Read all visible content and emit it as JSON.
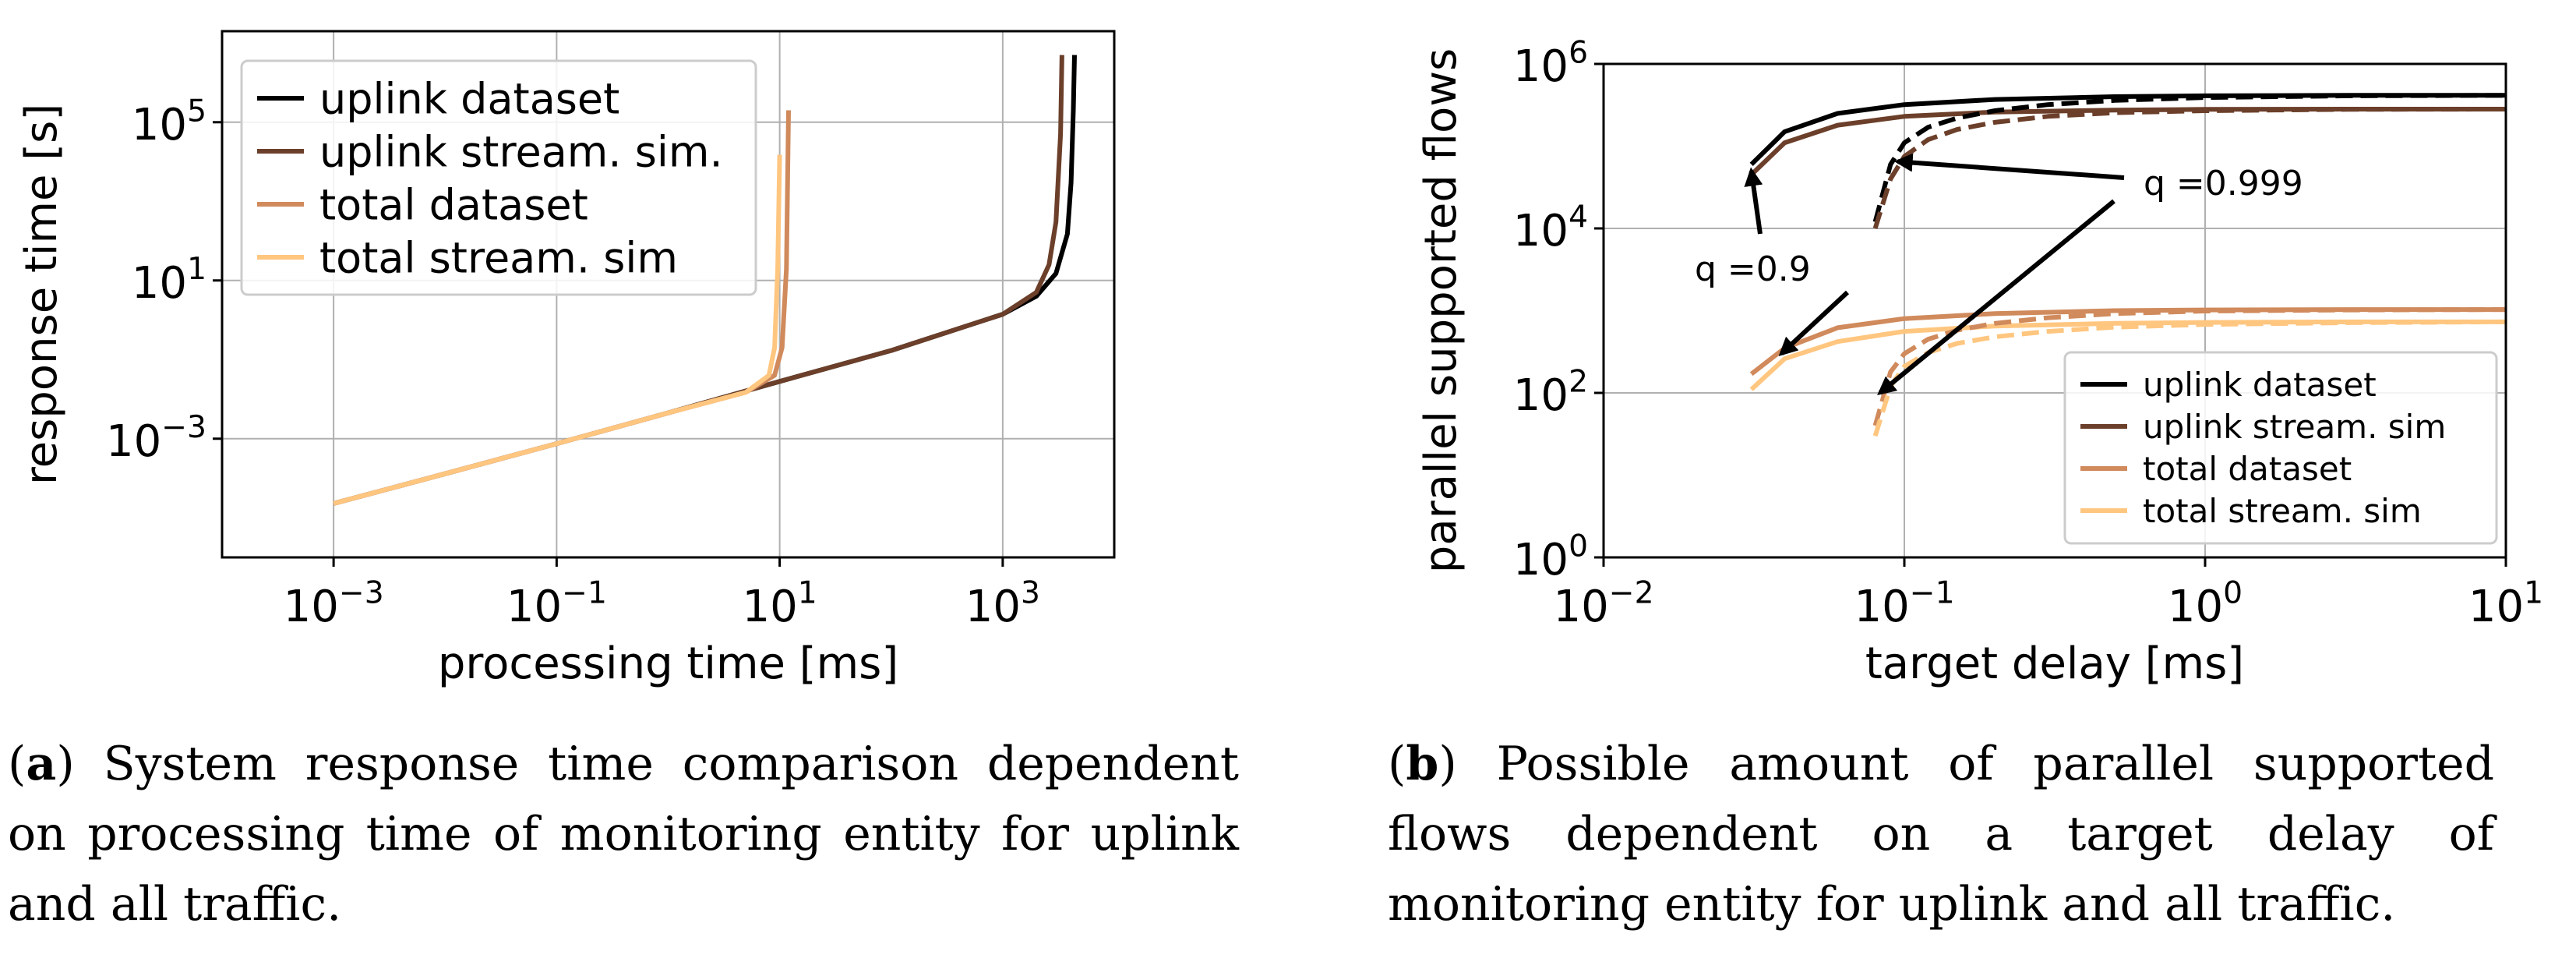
{
  "chart_data": [
    {
      "type": "line",
      "panel": "a",
      "xscale": "log",
      "yscale": "log",
      "xlabel": "processing time [ms]",
      "ylabel": "response time [s]",
      "xlim": [
        0.0001,
        10000
      ],
      "ylim": [
        1e-06,
        20000000
      ],
      "x_ticks": [
        {
          "value": 0.001,
          "base": "10",
          "exp": "−3"
        },
        {
          "value": 0.1,
          "base": "10",
          "exp": "−1"
        },
        {
          "value": 10,
          "base": "10",
          "exp": "1"
        },
        {
          "value": 1000,
          "base": "10",
          "exp": "3"
        }
      ],
      "y_ticks": [
        {
          "value": 0.001,
          "base": "10",
          "exp": "−3"
        },
        {
          "value": 10,
          "base": "10",
          "exp": "1"
        },
        {
          "value": 100000,
          "base": "10",
          "exp": "5"
        }
      ],
      "grid": true,
      "legend_position": "top-left",
      "series": [
        {
          "name": "uplink dataset",
          "color": "#000000",
          "x": [
            0.001,
            0.01,
            0.1,
            1,
            10,
            100,
            1000,
            2000,
            3000,
            3800,
            4100,
            4300,
            4400
          ],
          "y": [
            2.3e-05,
            0.00013,
            0.00075,
            0.0045,
            0.028,
            0.17,
            1.4,
            4.0,
            15,
            150,
            3000,
            200000,
            5000000
          ]
        },
        {
          "name": "uplink stream. sim.",
          "color": "#6b3f2a",
          "x": [
            0.001,
            0.01,
            0.1,
            1,
            10,
            100,
            1000,
            2000,
            2600,
            3000,
            3300,
            3400
          ],
          "y": [
            2.3e-05,
            0.00013,
            0.00075,
            0.0045,
            0.028,
            0.17,
            1.4,
            5.0,
            25,
            300,
            50000,
            5000000
          ]
        },
        {
          "name": "total dataset",
          "color": "#d08a5c",
          "x": [
            0.001,
            0.01,
            0.1,
            1,
            5,
            9,
            10.5,
            11.5,
            12
          ],
          "y": [
            2.3e-05,
            0.00013,
            0.00075,
            0.0045,
            0.015,
            0.04,
            0.2,
            20,
            200000
          ]
        },
        {
          "name": "total stream. sim",
          "color": "#ffc680",
          "x": [
            0.001,
            0.01,
            0.1,
            1,
            5,
            8,
            9,
            9.6,
            10
          ],
          "y": [
            2.3e-05,
            0.00013,
            0.00075,
            0.0045,
            0.015,
            0.04,
            0.2,
            20,
            15000
          ]
        }
      ],
      "caption": {
        "label": "a",
        "text": " System response time comparison dependent on processing time of monitoring entity for uplink and all traffic."
      }
    },
    {
      "type": "line",
      "panel": "b",
      "xscale": "log",
      "yscale": "log",
      "xlabel": "target delay [ms]",
      "ylabel": "parallel supported flows",
      "xlim": [
        0.01,
        10
      ],
      "ylim": [
        1,
        1000000
      ],
      "x_ticks": [
        {
          "value": 0.01,
          "base": "10",
          "exp": "−2"
        },
        {
          "value": 0.1,
          "base": "10",
          "exp": "−1"
        },
        {
          "value": 1,
          "base": "10",
          "exp": "0"
        },
        {
          "value": 10,
          "base": "10",
          "exp": "1"
        }
      ],
      "y_ticks": [
        {
          "value": 1,
          "base": "10",
          "exp": "0"
        },
        {
          "value": 100,
          "base": "10",
          "exp": "2"
        },
        {
          "value": 10000,
          "base": "10",
          "exp": "4"
        },
        {
          "value": 1000000,
          "base": "10",
          "exp": "6"
        }
      ],
      "grid": true,
      "legend_position": "bottom-right",
      "series": [
        {
          "name": "uplink dataset",
          "quantile": "0.9",
          "style": "solid",
          "color": "#000000",
          "x": [
            0.031,
            0.04,
            0.06,
            0.1,
            0.2,
            0.5,
            1,
            3,
            10
          ],
          "y": [
            60000,
            150000,
            250000,
            320000,
            370000,
            400000,
            410000,
            415000,
            415000
          ]
        },
        {
          "name": "uplink stream. sim",
          "quantile": "0.9",
          "style": "solid",
          "color": "#6b3f2a",
          "x": [
            0.031,
            0.04,
            0.06,
            0.1,
            0.2,
            0.5,
            1,
            3,
            10
          ],
          "y": [
            45000,
            110000,
            180000,
            230000,
            260000,
            275000,
            280000,
            282000,
            282000
          ]
        },
        {
          "name": "total dataset",
          "quantile": "0.9",
          "style": "solid",
          "color": "#d08a5c",
          "x": [
            0.031,
            0.04,
            0.06,
            0.1,
            0.2,
            0.5,
            1,
            3,
            10
          ],
          "y": [
            170,
            350,
            620,
            800,
            920,
            1000,
            1020,
            1030,
            1030
          ]
        },
        {
          "name": "total stream. sim",
          "quantile": "0.9",
          "style": "solid",
          "color": "#ffc680",
          "x": [
            0.031,
            0.04,
            0.06,
            0.1,
            0.2,
            0.5,
            1,
            3,
            10
          ],
          "y": [
            110,
            260,
            420,
            560,
            650,
            700,
            720,
            730,
            730
          ]
        },
        {
          "name": "uplink dataset",
          "quantile": "0.999",
          "style": "dashed",
          "color": "#000000",
          "x": [
            0.08,
            0.09,
            0.1,
            0.12,
            0.15,
            0.2,
            0.3,
            0.5,
            1,
            3,
            10
          ],
          "y": [
            12000,
            60000,
            110000,
            170000,
            220000,
            270000,
            320000,
            360000,
            390000,
            410000,
            415000
          ]
        },
        {
          "name": "uplink stream. sim",
          "quantile": "0.999",
          "style": "dashed",
          "color": "#6b3f2a",
          "x": [
            0.08,
            0.09,
            0.1,
            0.12,
            0.15,
            0.2,
            0.3,
            0.5,
            1,
            3,
            10
          ],
          "y": [
            10000,
            40000,
            75000,
            120000,
            160000,
            195000,
            230000,
            255000,
            270000,
            280000,
            282000
          ]
        },
        {
          "name": "total dataset",
          "quantile": "0.999",
          "style": "dashed",
          "color": "#d08a5c",
          "x": [
            0.08,
            0.09,
            0.1,
            0.12,
            0.15,
            0.2,
            0.3,
            0.5,
            1,
            3,
            10
          ],
          "y": [
            40,
            180,
            300,
            450,
            580,
            700,
            820,
            920,
            990,
            1020,
            1030
          ]
        },
        {
          "name": "total stream. sim",
          "quantile": "0.999",
          "style": "dashed",
          "color": "#ffc680",
          "x": [
            0.08,
            0.09,
            0.1,
            0.12,
            0.15,
            0.2,
            0.3,
            0.5,
            1,
            3,
            10
          ],
          "y": [
            30,
            120,
            210,
            310,
            400,
            480,
            560,
            630,
            680,
            715,
            730
          ]
        }
      ],
      "annotations": [
        {
          "text": "q =0.9",
          "targets": [
            {
              "x": 0.031,
              "y": 50000
            },
            {
              "x": 0.039,
              "y": 300
            }
          ]
        },
        {
          "text": "q =0.999",
          "targets": [
            {
              "x": 0.095,
              "y": 65000
            },
            {
              "x": 0.083,
              "y": 100
            }
          ]
        }
      ],
      "caption": {
        "label": "b",
        "text": " Possible amount of parallel supported flows dependent on a target delay of monitoring entity for uplink and all traffic."
      }
    }
  ]
}
